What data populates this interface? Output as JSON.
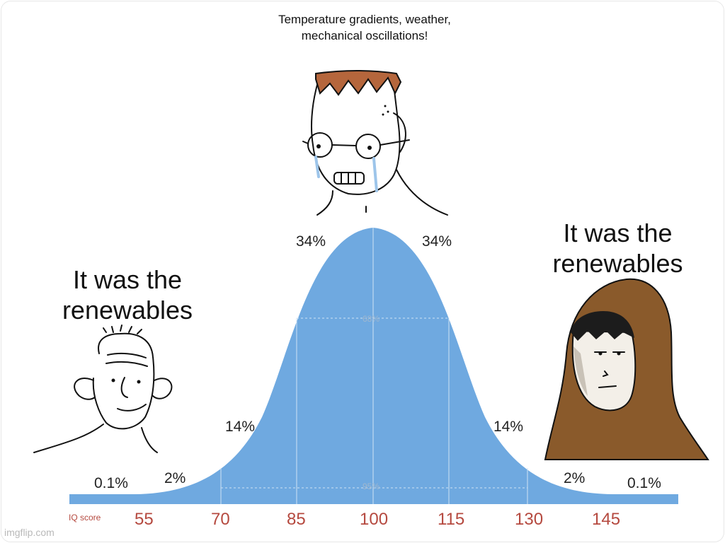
{
  "captions": {
    "middle": "Temperature gradients, weather, mechanical oscillations!",
    "left": "It was the renewables",
    "right": "It was the renewables"
  },
  "percentages": {
    "far_left": "0.1%",
    "left_2": "2%",
    "left_14": "14%",
    "left_34": "34%",
    "right_34": "34%",
    "right_14": "14%",
    "right_2": "2%",
    "far_right": "0.1%",
    "band_68": "68%",
    "band_95": "95%"
  },
  "axis": {
    "label": "IQ score",
    "ticks": [
      "55",
      "70",
      "85",
      "100",
      "115",
      "130",
      "145"
    ]
  },
  "watermark": "imgflip.com",
  "colors": {
    "curve": "#6fa9e0",
    "tick_text": "#b5493f",
    "hood": "#8a5a2b"
  }
}
